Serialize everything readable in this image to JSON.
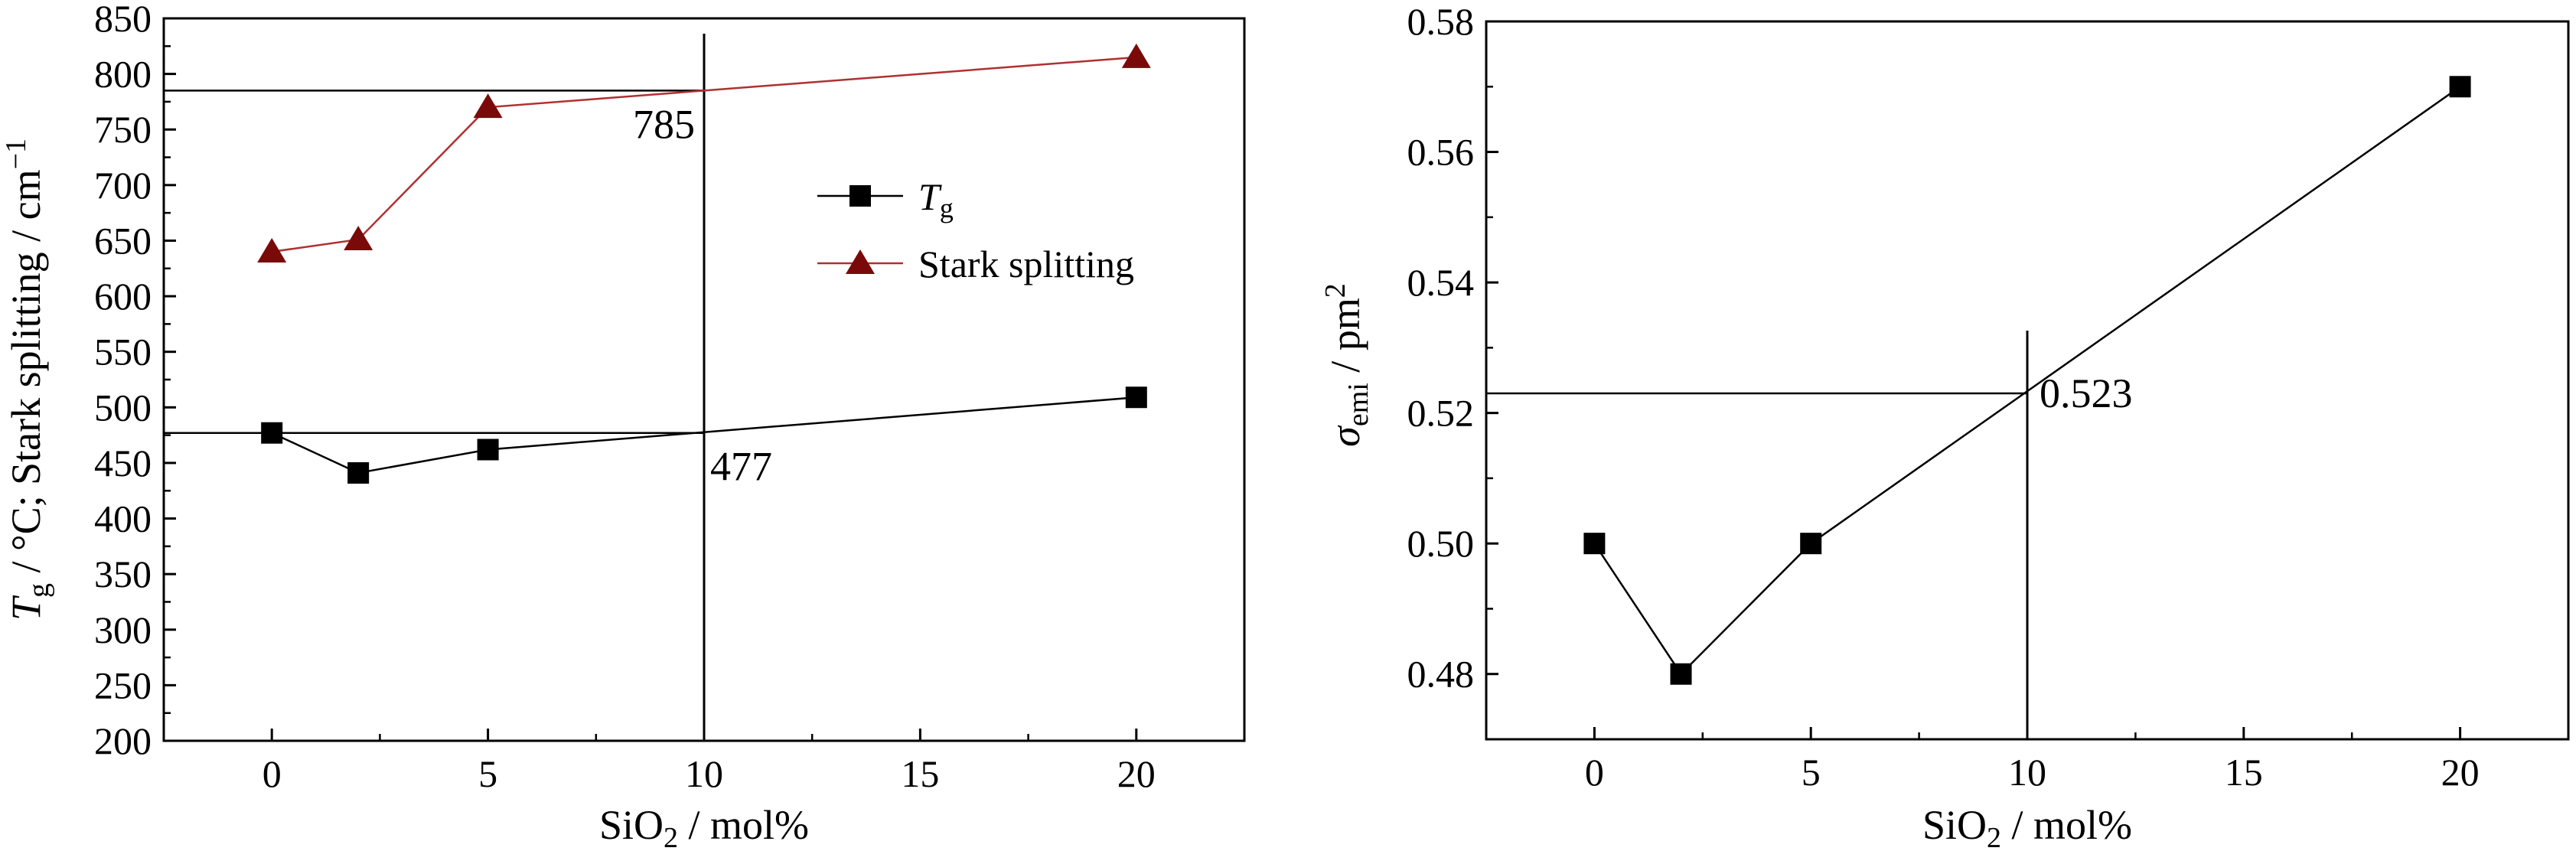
{
  "chart_data": [
    {
      "type": "line",
      "xlabel": {
        "main": "SiO",
        "sub": "2",
        "rest": " / mol%"
      },
      "ylabel": {
        "main": "T",
        "sub": "g",
        "rest": " / °C; Stark splitting / cm",
        "sup": "−1"
      },
      "xlim": [
        -2.5,
        22.5
      ],
      "ylim": [
        200,
        850
      ],
      "xticks": [
        0,
        5,
        10,
        15,
        20
      ],
      "yticks": [
        200,
        250,
        300,
        350,
        400,
        450,
        500,
        550,
        600,
        650,
        700,
        750,
        800,
        850
      ],
      "series": [
        {
          "name": "T",
          "name_sub": "g",
          "marker": "square",
          "color": "#000000",
          "line_color": "#000000",
          "x": [
            0,
            2,
            5,
            20
          ],
          "y": [
            477,
            441,
            462,
            509
          ]
        },
        {
          "name": "Stark splitting",
          "marker": "triangle",
          "color": "#7a0a0a",
          "line_color": "#b03030",
          "x": [
            0,
            2,
            5,
            20
          ],
          "y": [
            640,
            651,
            770,
            815
          ]
        }
      ],
      "annotations": [
        {
          "text": "785",
          "x": 10,
          "y": 785
        },
        {
          "text": "477",
          "x": 10,
          "y": 477
        }
      ],
      "legend": "center-right"
    },
    {
      "type": "line",
      "xlabel": {
        "main": "SiO",
        "sub": "2",
        "rest": " / mol%"
      },
      "ylabel": {
        "main": "σ",
        "sub": "emi",
        "rest": " / pm",
        "sup": "2"
      },
      "xlim": [
        -2.5,
        22.5
      ],
      "ylim": [
        0.47,
        0.58
      ],
      "xticks": [
        0,
        5,
        10,
        15,
        20
      ],
      "yticks": [
        0.48,
        0.5,
        0.52,
        0.54,
        0.56,
        0.58
      ],
      "series": [
        {
          "name": "",
          "marker": "square",
          "color": "#000000",
          "line_color": "#000000",
          "x": [
            0,
            2,
            5,
            20
          ],
          "y": [
            0.5,
            0.48,
            0.5,
            0.57
          ]
        }
      ],
      "annotations": [
        {
          "text": "0.523",
          "x": 10,
          "y": 0.523
        }
      ]
    }
  ]
}
